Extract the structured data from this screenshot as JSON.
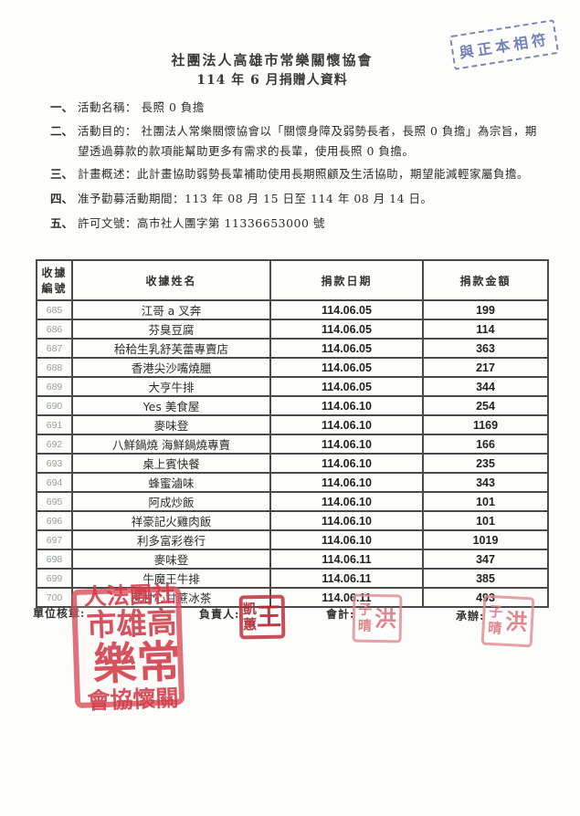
{
  "document": {
    "org_title": "社團法人高雄市常樂關懷協會",
    "doc_title": "114 年 6 月捐贈人資料",
    "verification_stamp": "與正本相符"
  },
  "items": [
    {
      "num": "一、",
      "text": "活動名稱： 長照 0 負擔"
    },
    {
      "num": "二、",
      "text": "活動目的： 社團法人常樂關懷協會以「關懷身障及弱勢長者，長照 0 負擔」為宗旨，期望透過募款的款項能幫助更多有需求的長輩，使用長照 0 負擔。"
    },
    {
      "num": "三、",
      "text": "計畫概述：此計畫協助弱勢長輩補助使用長期照顧及生活協助，期望能減輕家屬負擔。"
    },
    {
      "num": "四、",
      "text": "准予勸募活動期間：113 年 08 月 15 日至 114 年 08 月 14 日。"
    },
    {
      "num": "五、",
      "text": "許可文號：高市社人團字第 11336653000 號"
    }
  ],
  "table": {
    "header": {
      "receipt_no_line1": "收據",
      "receipt_no_line2": "編號",
      "receipt_name": "收據姓名",
      "donation_date": "捐款日期",
      "donation_amount": "捐款金額"
    },
    "rows": [
      [
        "685",
        "江哥 a 叉奔",
        "114.06.05",
        "199"
      ],
      [
        "686",
        "芬臭豆腐",
        "114.06.05",
        "114"
      ],
      [
        "687",
        "秴秴生乳舒芙蕾專賣店",
        "114.06.05",
        "363"
      ],
      [
        "688",
        "香港尖沙嘴燒臘",
        "114.06.05",
        "217"
      ],
      [
        "689",
        "大亨牛排",
        "114.06.05",
        "344"
      ],
      [
        "690",
        "Yes 美食屋",
        "114.06.10",
        "254"
      ],
      [
        "691",
        "麥味登",
        "114.06.10",
        "1169"
      ],
      [
        "692",
        "八鮮鍋燒 海鮮鍋燒專賣",
        "114.06.10",
        "166"
      ],
      [
        "693",
        "桌上賓快餐",
        "114.06.10",
        "235"
      ],
      [
        "694",
        "蜂蜜滷味",
        "114.06.10",
        "343"
      ],
      [
        "695",
        "阿成炒飯",
        "114.06.10",
        "101"
      ],
      [
        "696",
        "祥豪記火雞肉飯",
        "114.06.10",
        "101"
      ],
      [
        "697",
        "利多富彩卷行",
        "114.06.10",
        "1019"
      ],
      [
        "698",
        "麥味登",
        "114.06.11",
        "347"
      ],
      [
        "699",
        "牛魔王牛排",
        "114.06.11",
        "385"
      ],
      [
        "700",
        "蔗甘心甘蔗冰茶",
        "114.06.11",
        "493"
      ]
    ]
  },
  "footer": {
    "unit_seal_label": "單位核章:",
    "org_stamp_columns": [
      "社團法人",
      "高雄市",
      "常樂",
      "關懷協會"
    ],
    "responsible": {
      "label": "負責人:",
      "stamp_main": "王",
      "stamp_side_top": "凱",
      "stamp_side_bottom": "蕙"
    },
    "accountant": {
      "label": "會計:",
      "stamp_main": "洪",
      "stamp_side_top": "子",
      "stamp_side_bottom": "晴"
    },
    "handler": {
      "label": "承辦:",
      "stamp_main": "洪",
      "stamp_side_top": "子",
      "stamp_side_bottom": "晴"
    }
  },
  "colors": {
    "stamp_red": "#d74a56",
    "stamp_dark_red": "#b9323e",
    "stamp_pink": "#e28892",
    "stamp_blue": "#5c6cae",
    "table_border": "#4a4a4a"
  }
}
